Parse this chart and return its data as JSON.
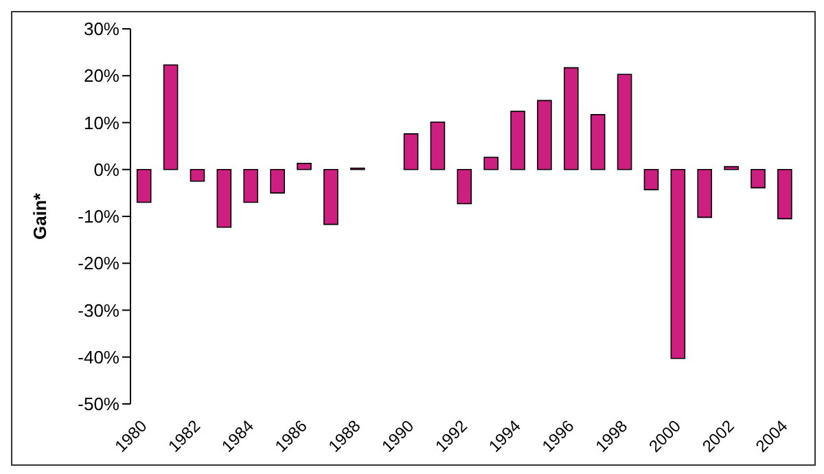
{
  "chart_data": {
    "type": "bar",
    "ylabel": "Gain*",
    "categories": [
      "1980",
      null,
      "1982",
      null,
      "1984",
      null,
      "1986",
      null,
      "1988",
      null,
      "1990",
      null,
      "1992",
      null,
      "1994",
      null,
      "1996",
      null,
      "1998",
      null,
      "2000",
      null,
      "2002",
      null,
      "2004"
    ],
    "values": [
      -7,
      22.3,
      -2.5,
      -12.3,
      -7,
      -5,
      1.3,
      -11.7,
      0.3,
      0,
      7.6,
      10.1,
      -7.3,
      2.6,
      12.4,
      14.7,
      21.7,
      11.7,
      20.3,
      -4.3,
      -40.3,
      -10.2,
      0.6,
      -3.9,
      -10.5
    ],
    "color": "#cc1f7f",
    "ylim": [
      -50,
      30
    ],
    "yticks": [
      {
        "value": -50,
        "label": "-50%"
      },
      {
        "value": -40,
        "label": "-40%"
      },
      {
        "value": -30,
        "label": "-30%"
      },
      {
        "value": -20,
        "label": "-20%"
      },
      {
        "value": -10,
        "label": "-10%"
      },
      {
        "value": 0,
        "label": "0%"
      },
      {
        "value": 10,
        "label": "10%"
      },
      {
        "value": 20,
        "label": "20%"
      },
      {
        "value": 30,
        "label": "30%"
      }
    ],
    "grid": false,
    "legend": false
  }
}
